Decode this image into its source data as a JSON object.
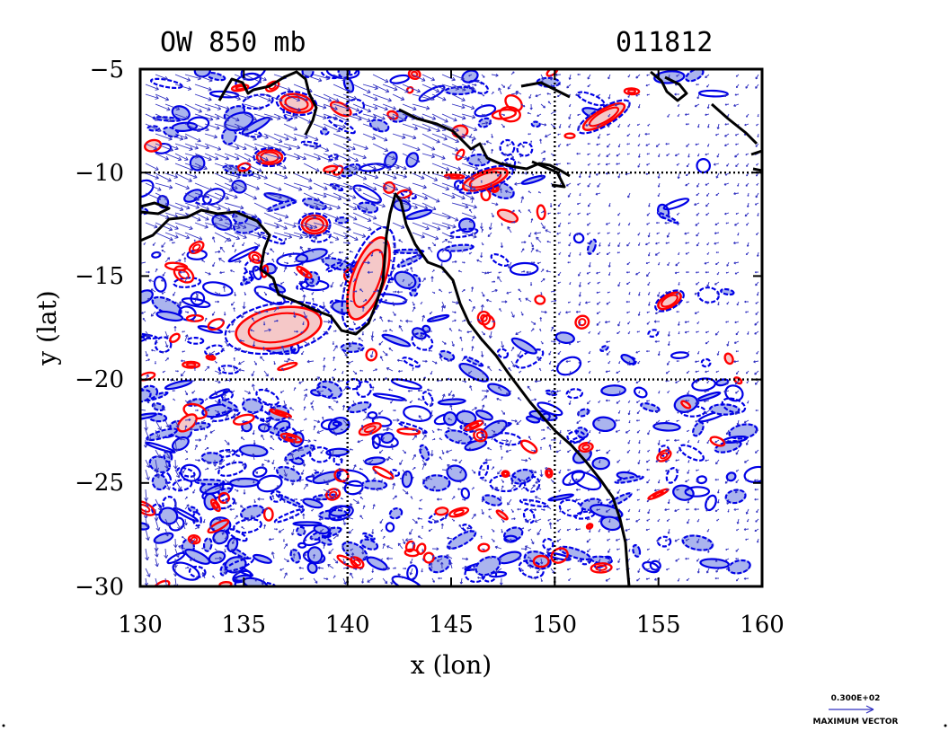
{
  "title_left": "OW 850 mb",
  "title_right": "011812",
  "xlabel": "x (lon)",
  "ylabel": "y (lat)",
  "x_range": [
    130,
    160
  ],
  "y_range": [
    -30,
    -5
  ],
  "x_ticks": [
    "130",
    "135",
    "140",
    "145",
    "150",
    "155",
    "160"
  ],
  "y_ticks": [
    "−5",
    "−10",
    "−15",
    "−20",
    "−25",
    "−30"
  ],
  "grid_lines_lon": [
    140,
    150
  ],
  "grid_lines_lat": [
    -10,
    -20
  ],
  "vector_legend": {
    "value": "0.300E+02",
    "label": "MAXIMUM VECTOR"
  },
  "colors": {
    "positive_contour": "#ff0000",
    "positive_fill": "#f5c8c8",
    "negative_contour": "#0000e6",
    "negative_fill": "#aab4ee",
    "coastline": "#000000",
    "vector": "#3030c0"
  }
}
